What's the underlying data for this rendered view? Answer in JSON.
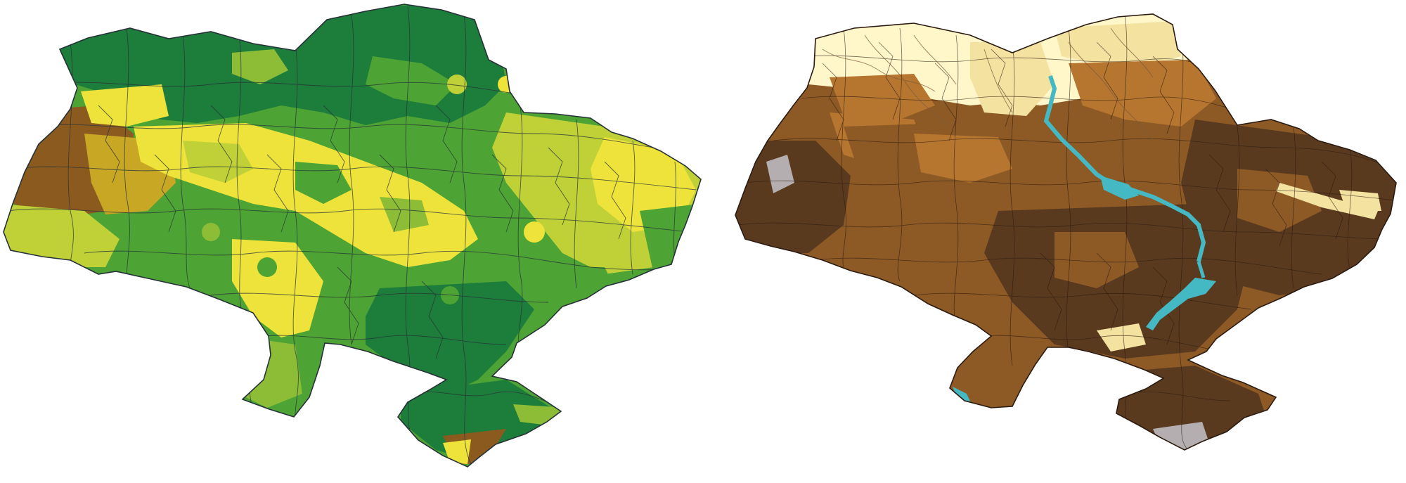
{
  "maps": [
    {
      "name": "left-map",
      "palette": {
        "dark_green": "#1d7d3a",
        "medium_green": "#4da333",
        "light_green": "#8dbd37",
        "lime": "#bfd137",
        "yellow": "#eee33a",
        "mustard": "#c7a724",
        "brown": "#8a5a1f",
        "border": "#263238"
      }
    },
    {
      "name": "right-map",
      "palette": {
        "dark_brown": "#5a3a1f",
        "medium_brown": "#8d5a26",
        "orange_brown": "#b77630",
        "light_tan": "#f4e2a0",
        "cream": "#fff6c9",
        "gray": "#b4aeb0",
        "water": "#45b9c3",
        "border": "#2a1a10"
      }
    }
  ]
}
